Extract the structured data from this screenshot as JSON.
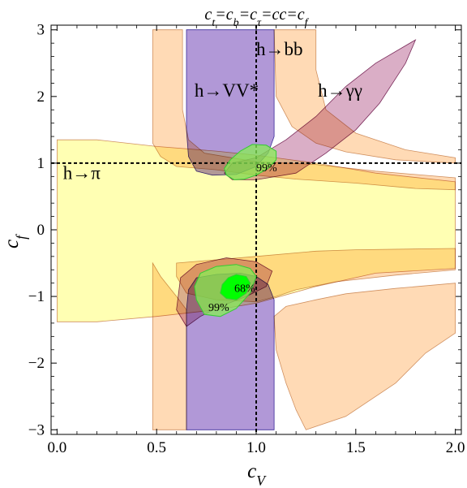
{
  "chart_data": {
    "type": "area",
    "title": "c_t=c_b=c_τ=c_c=c_f",
    "title_parts": [
      "c",
      "t",
      "=",
      "c",
      "b",
      "=",
      "c",
      "τ",
      "=",
      "c",
      "c",
      "=",
      "c",
      "f"
    ],
    "xlabel": "c_V",
    "xlabel_parts": [
      "c",
      "V"
    ],
    "ylabel": "c_f",
    "ylabel_parts": [
      "c",
      "f"
    ],
    "xlim": [
      -0.03,
      2.03
    ],
    "ylim": [
      -3.07,
      3.07
    ],
    "x_ticks": [
      0.0,
      0.5,
      1.0,
      1.5,
      2.0
    ],
    "x_tick_labels": [
      "0.0",
      "0.5",
      "1.0",
      "1.5",
      "2.0"
    ],
    "y_ticks": [
      -3,
      -2,
      -1,
      0,
      1,
      2,
      3
    ],
    "y_tick_labels": [
      "−3",
      "−2",
      "−1",
      "0",
      "1",
      "2",
      "3"
    ],
    "grid": false,
    "reference_lines": {
      "x": 1.0,
      "y": 1.0,
      "style": "dashed"
    },
    "colors": {
      "pi_band": "#ffff99",
      "bb_band": "#ffcc99",
      "overlap": "#ffdd55",
      "vv_band": "#9370c8",
      "gamma_band": "#cc8fb0",
      "fit_99": "#88ee55",
      "fit_68": "#00ff00"
    },
    "series": [
      {
        "name": "h→bb",
        "color": "#ffcc99",
        "regions": [
          [
            [
              0.48,
              3.0
            ],
            [
              0.63,
              3.0
            ],
            [
              0.63,
              1.8
            ],
            [
              0.66,
              1.35
            ],
            [
              0.74,
              1.15
            ],
            [
              1.0,
              1.02
            ],
            [
              1.3,
              0.98
            ],
            [
              1.6,
              0.88
            ],
            [
              2.0,
              0.78
            ],
            [
              2.0,
              0.6
            ],
            [
              1.8,
              0.62
            ],
            [
              1.5,
              0.7
            ],
            [
              1.2,
              0.76
            ],
            [
              1.0,
              0.82
            ],
            [
              0.8,
              0.9
            ],
            [
              0.6,
              0.95
            ],
            [
              0.52,
              1.1
            ],
            [
              0.48,
              1.3
            ]
          ],
          [
            [
              1.09,
              3.0
            ],
            [
              1.3,
              3.0
            ],
            [
              1.3,
              2.4
            ],
            [
              1.35,
              1.8
            ],
            [
              1.5,
              1.45
            ],
            [
              1.75,
              1.2
            ],
            [
              2.0,
              1.08
            ],
            [
              2.0,
              1.0
            ],
            [
              1.7,
              1.05
            ],
            [
              1.45,
              1.17
            ],
            [
              1.3,
              1.3
            ],
            [
              1.18,
              1.55
            ],
            [
              1.1,
              2.0
            ]
          ],
          [
            [
              0.48,
              -3.0
            ],
            [
              0.65,
              -3.0
            ],
            [
              0.65,
              -1.2
            ],
            [
              0.6,
              -1.0
            ],
            [
              0.52,
              -0.7
            ],
            [
              0.48,
              -0.5
            ]
          ],
          [
            [
              0.6,
              -0.5
            ],
            [
              1.0,
              -0.4
            ],
            [
              1.3,
              -0.32
            ],
            [
              1.5,
              -0.3
            ],
            [
              2.0,
              -0.28
            ],
            [
              2.0,
              -0.6
            ],
            [
              1.7,
              -0.68
            ],
            [
              1.4,
              -0.78
            ],
            [
              1.2,
              -0.9
            ],
            [
              1.1,
              -1.0
            ],
            [
              1.0,
              -1.08
            ],
            [
              0.8,
              -1.05
            ],
            [
              0.65,
              -0.95
            ],
            [
              0.6,
              -0.7
            ]
          ],
          [
            [
              1.09,
              -1.3
            ],
            [
              1.1,
              -1.8
            ],
            [
              1.15,
              -2.3
            ],
            [
              1.2,
              -2.7
            ],
            [
              1.25,
              -3.0
            ],
            [
              1.45,
              -2.8
            ],
            [
              1.7,
              -2.3
            ],
            [
              1.85,
              -1.85
            ],
            [
              2.0,
              -1.55
            ],
            [
              2.0,
              -0.8
            ],
            [
              1.7,
              -0.88
            ],
            [
              1.45,
              -0.96
            ],
            [
              1.3,
              -1.05
            ],
            [
              1.15,
              -1.15
            ]
          ]
        ]
      },
      {
        "name": "h→π",
        "color": "#ffff99",
        "regions": [
          [
            [
              0.0,
              1.35
            ],
            [
              0.2,
              1.35
            ],
            [
              0.5,
              1.25
            ],
            [
              0.8,
              1.18
            ],
            [
              1.0,
              1.12
            ],
            [
              1.3,
              1.0
            ],
            [
              1.6,
              0.85
            ],
            [
              2.0,
              0.72
            ],
            [
              2.0,
              -0.58
            ],
            [
              1.6,
              -0.65
            ],
            [
              1.3,
              -0.85
            ],
            [
              1.0,
              -1.1
            ],
            [
              0.8,
              -1.2
            ],
            [
              0.5,
              -1.3
            ],
            [
              0.2,
              -1.38
            ],
            [
              0.0,
              -1.38
            ]
          ]
        ]
      },
      {
        "name": "h→VV*",
        "color": "#9370c8",
        "regions": [
          [
            [
              0.65,
              3.0
            ],
            [
              1.09,
              3.0
            ],
            [
              1.09,
              1.4
            ],
            [
              1.06,
              1.15
            ],
            [
              1.0,
              0.95
            ],
            [
              0.9,
              0.83
            ],
            [
              0.78,
              0.82
            ],
            [
              0.7,
              0.88
            ],
            [
              0.66,
              1.1
            ],
            [
              0.65,
              1.5
            ]
          ],
          [
            [
              0.65,
              -3.0
            ],
            [
              1.09,
              -3.0
            ],
            [
              1.09,
              -1.05
            ],
            [
              1.06,
              -0.82
            ],
            [
              1.0,
              -0.7
            ],
            [
              0.92,
              -0.65
            ],
            [
              0.8,
              -0.67
            ],
            [
              0.7,
              -0.72
            ],
            [
              0.66,
              -0.9
            ],
            [
              0.65,
              -1.2
            ]
          ]
        ]
      },
      {
        "name": "h→γγ",
        "color": "#cc8fb0",
        "regions": [
          [
            [
              0.88,
              1.0
            ],
            [
              1.0,
              1.08
            ],
            [
              1.15,
              1.35
            ],
            [
              1.3,
              1.7
            ],
            [
              1.45,
              2.15
            ],
            [
              1.6,
              2.5
            ],
            [
              1.8,
              2.85
            ],
            [
              1.75,
              2.5
            ],
            [
              1.62,
              1.9
            ],
            [
              1.5,
              1.5
            ],
            [
              1.35,
              1.15
            ],
            [
              1.2,
              0.85
            ],
            [
              1.0,
              0.75
            ],
            [
              0.88,
              0.75
            ],
            [
              0.84,
              0.85
            ]
          ],
          [
            [
              0.62,
              -0.72
            ],
            [
              0.7,
              -0.52
            ],
            [
              0.85,
              -0.42
            ],
            [
              1.0,
              -0.48
            ],
            [
              1.08,
              -0.62
            ],
            [
              1.05,
              -0.85
            ],
            [
              0.95,
              -1.0
            ],
            [
              0.82,
              -1.15
            ],
            [
              0.72,
              -1.3
            ],
            [
              0.65,
              -1.45
            ],
            [
              0.6,
              -1.2
            ]
          ]
        ]
      }
    ],
    "fit_regions": [
      {
        "label": "99%",
        "color": "#88ee55",
        "region": [
          [
            0.89,
            0.75
          ],
          [
            0.85,
            0.82
          ],
          [
            0.84,
            0.92
          ],
          [
            0.87,
            1.05
          ],
          [
            0.92,
            1.18
          ],
          [
            0.98,
            1.28
          ],
          [
            1.05,
            1.27
          ],
          [
            1.1,
            1.18
          ],
          [
            1.1,
            1.05
          ],
          [
            1.06,
            0.92
          ],
          [
            1.0,
            0.82
          ],
          [
            0.94,
            0.76
          ]
        ],
        "label_pos": [
          1.0,
          0.88
        ]
      },
      {
        "label": "99%",
        "color": "#88ee55",
        "region": [
          [
            0.72,
            -0.65
          ],
          [
            0.8,
            -0.55
          ],
          [
            0.9,
            -0.52
          ],
          [
            0.97,
            -0.58
          ],
          [
            1.0,
            -0.7
          ],
          [
            0.97,
            -0.95
          ],
          [
            0.9,
            -1.18
          ],
          [
            0.82,
            -1.3
          ],
          [
            0.74,
            -1.27
          ],
          [
            0.7,
            -1.05
          ],
          [
            0.69,
            -0.85
          ]
        ],
        "label_pos": [
          0.76,
          -1.22
        ]
      },
      {
        "label": "68%",
        "color": "#00ff00",
        "region": [
          [
            0.83,
            -0.82
          ],
          [
            0.86,
            -0.72
          ],
          [
            0.9,
            -0.67
          ],
          [
            0.95,
            -0.7
          ],
          [
            0.97,
            -0.8
          ],
          [
            0.95,
            -0.95
          ],
          [
            0.9,
            -1.05
          ],
          [
            0.85,
            -1.03
          ],
          [
            0.82,
            -0.95
          ]
        ],
        "label_pos": [
          0.89,
          -0.93
        ]
      }
    ],
    "annotations": [
      {
        "text": "h→bb",
        "x": 1.0,
        "y": 2.62
      },
      {
        "text": "h→VV*",
        "x": 0.69,
        "y": 2.0
      },
      {
        "text": "h→γγ",
        "x": 1.31,
        "y": 2.0
      },
      {
        "text": "h→π",
        "x": 0.03,
        "y": 0.76
      }
    ]
  }
}
